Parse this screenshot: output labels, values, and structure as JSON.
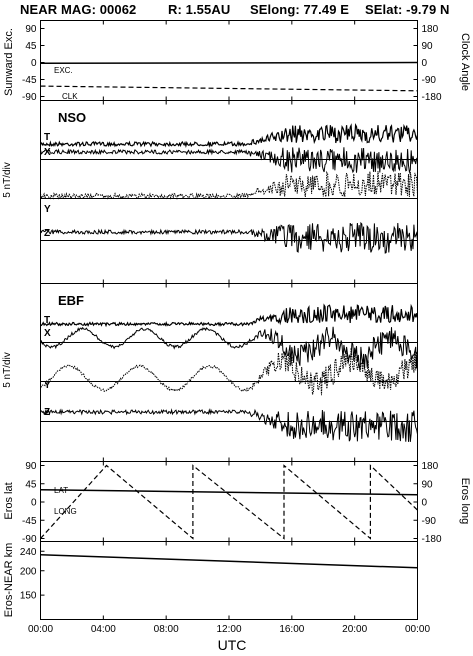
{
  "header": {
    "mission": "NEAR MAG: 00062",
    "range": "R: 1.55AU",
    "selong": "SElong:   77.49 E",
    "selat": "SElat:   -9.79 N"
  },
  "chart_data": [
    {
      "type": "line",
      "name": "sunward-clock-panel",
      "ylabel": "Sunward Exc.",
      "ylabel_right": "Clock Angle",
      "yticks_left": [
        "90",
        "45",
        "0",
        "-45",
        "-90"
      ],
      "yticks_right": [
        "180",
        "90",
        "0",
        "-90",
        "-180"
      ],
      "ylim": [
        -90,
        90
      ],
      "ylim_right": [
        -180,
        180
      ],
      "trace_labels": [
        "EXC.",
        "CLK"
      ],
      "series": [
        {
          "name": "EXC.",
          "style": "solid",
          "x": [
            0,
            24
          ],
          "y": [
            -2,
            0
          ]
        },
        {
          "name": "CLK",
          "style": "dashed",
          "x": [
            0,
            24
          ],
          "y": [
            -125,
            -150
          ]
        }
      ]
    },
    {
      "type": "line",
      "name": "nso-panel",
      "panel_label": "NSO",
      "ylabel": "5 nT/div",
      "trace_labels": [
        "T",
        "X",
        "Y",
        "Z"
      ],
      "baselines": [
        "X",
        "Y",
        "Z"
      ],
      "description_values": {
        "quiet_until_hour": 13,
        "disturbed_from_hour": 14
      }
    },
    {
      "type": "line",
      "name": "ebf-panel",
      "panel_label": "EBF",
      "ylabel": "5 nT/div",
      "trace_labels": [
        "T",
        "X",
        "Y",
        "Z"
      ],
      "baselines": [
        "X",
        "Y",
        "Z"
      ]
    },
    {
      "type": "line",
      "name": "eros-lat-long-panel",
      "ylabel": "Eros lat",
      "ylabel_right": "Eros long",
      "yticks_left": [
        "90",
        "45",
        "0",
        "-45",
        "-90"
      ],
      "yticks_right": [
        "180",
        "90",
        "0",
        "-90",
        "-180"
      ],
      "ylim": [
        -90,
        90
      ],
      "ylim_right": [
        -180,
        180
      ],
      "trace_labels": [
        "LAT",
        "LONG"
      ],
      "series": [
        {
          "name": "LAT",
          "style": "solid",
          "x": [
            0,
            24
          ],
          "y": [
            30,
            18
          ]
        },
        {
          "name": "LONG",
          "style": "dashed",
          "x": [
            0,
            4.2,
            4.2,
            9.7,
            9.7,
            15.5,
            15.5,
            21.0,
            21.0,
            24
          ],
          "y": [
            -180,
            180,
            180,
            -180,
            180,
            -180,
            180,
            -180,
            180,
            -40
          ]
        }
      ]
    },
    {
      "type": "line",
      "name": "eros-near-distance-panel",
      "ylabel": "Eros-NEAR km",
      "yticks": [
        "240",
        "200",
        "150"
      ],
      "ylim": [
        100,
        260
      ],
      "series": [
        {
          "name": "",
          "style": "solid",
          "x": [
            0,
            24
          ],
          "y": [
            233,
            206
          ]
        }
      ]
    }
  ],
  "xaxis": {
    "ticks": [
      "00:00",
      "04:00",
      "08:00",
      "12:00",
      "16:00",
      "20:00",
      "00:00"
    ],
    "label": "UTC",
    "xlim": [
      0,
      24
    ]
  }
}
